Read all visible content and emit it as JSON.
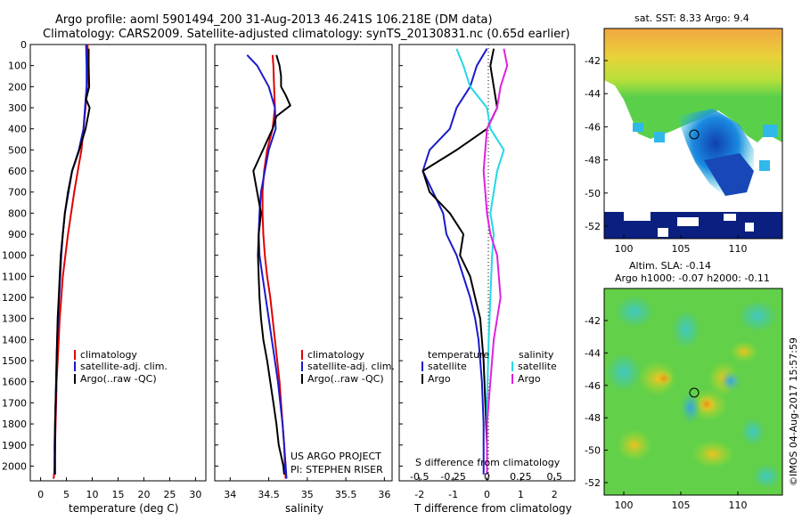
{
  "header": {
    "line1": "Argo profile: aoml 5901494_200 31-Aug-2013 46.241S 106.218E (DM data)",
    "line2": "Climatology: CARS2009. Satellite-adjusted climatology: synTS_20130831.nc (0.65d earlier)"
  },
  "colors": {
    "climatology": "#e00000",
    "satellite": "#1a1acc",
    "argo": "#000000",
    "sal_satellite": "#22d8e8",
    "sal_argo": "#e020e0"
  },
  "chart_data": [
    {
      "type": "line",
      "id": "temperature",
      "xlabel": "temperature (deg C)",
      "ylabel": "",
      "xlim": [
        -2,
        32
      ],
      "ylim": [
        2070,
        0
      ],
      "xticks": [
        0,
        5,
        10,
        15,
        20,
        25,
        30
      ],
      "yticks": [
        0,
        100,
        200,
        300,
        400,
        500,
        600,
        700,
        800,
        900,
        1000,
        1100,
        1200,
        1300,
        1400,
        1500,
        1600,
        1700,
        1800,
        1900,
        2000
      ],
      "legend": [
        "climatology",
        "satellite-adj. clim.",
        "Argo(..raw -QC)"
      ],
      "series": [
        {
          "name": "climatology",
          "color": "#e00000",
          "x": [
            9.1,
            9.2,
            9.0,
            8.7,
            8.3,
            7.9,
            7.2,
            6.5,
            5.9,
            5.3,
            4.8,
            4.3,
            4.0,
            3.7,
            3.5,
            3.3,
            3.1,
            3.0,
            2.9,
            2.8,
            2.7,
            2.6,
            2.5
          ],
          "y": [
            0,
            100,
            200,
            300,
            400,
            500,
            600,
            700,
            800,
            900,
            1000,
            1100,
            1200,
            1300,
            1400,
            1500,
            1600,
            1700,
            1800,
            1900,
            2000,
            2040,
            2060
          ]
        },
        {
          "name": "satellite-adj. clim.",
          "color": "#1a1acc",
          "x": [
            8.8,
            8.9,
            8.9,
            8.6,
            8.3,
            7.4,
            6.1,
            5.4,
            4.7,
            4.3,
            4.0,
            3.8,
            3.6,
            3.4,
            3.2,
            3.1,
            3.0,
            2.9,
            2.8,
            2.7,
            2.7
          ],
          "y": [
            0,
            100,
            200,
            300,
            400,
            500,
            600,
            700,
            800,
            900,
            1000,
            1100,
            1200,
            1300,
            1400,
            1500,
            1600,
            1700,
            1800,
            1900,
            2040
          ]
        },
        {
          "name": "Argo(..raw -QC)",
          "color": "#000000",
          "x": [
            9.3,
            9.3,
            9.4,
            8.8,
            9.5,
            8.7,
            7.5,
            6.1,
            5.3,
            4.7,
            4.3,
            3.9,
            3.7,
            3.5,
            3.3,
            3.2,
            3.1,
            3.0,
            2.9,
            2.8,
            2.8
          ],
          "y": [
            20,
            100,
            200,
            260,
            300,
            400,
            500,
            600,
            700,
            800,
            900,
            1000,
            1100,
            1200,
            1300,
            1400,
            1500,
            1600,
            1700,
            1800,
            2040
          ]
        }
      ]
    },
    {
      "type": "line",
      "id": "salinity",
      "xlabel": "salinity",
      "xlim": [
        33.8,
        36.1
      ],
      "ylim": [
        2070,
        0
      ],
      "xticks": [
        34,
        34.5,
        35,
        35.5,
        36
      ],
      "legend": [
        "climatology",
        "satellite-adj. clim.",
        "Argo(..raw -QC)"
      ],
      "annotation": [
        "US ARGO PROJECT",
        "PI: STEPHEN RISER"
      ],
      "series": [
        {
          "name": "climatology",
          "color": "#e00000",
          "x": [
            34.55,
            34.56,
            34.57,
            34.58,
            34.55,
            34.48,
            34.44,
            34.42,
            34.42,
            34.43,
            34.45,
            34.48,
            34.52,
            34.55,
            34.58,
            34.61,
            34.64,
            34.66,
            34.68,
            34.7,
            34.71,
            34.72
          ],
          "y": [
            50,
            100,
            200,
            300,
            400,
            500,
            600,
            700,
            800,
            900,
            1000,
            1100,
            1200,
            1300,
            1400,
            1500,
            1600,
            1700,
            1800,
            1900,
            2000,
            2060
          ]
        },
        {
          "name": "satellite-adj. clim.",
          "color": "#1a1acc",
          "x": [
            34.22,
            34.35,
            34.5,
            34.58,
            34.59,
            34.5,
            34.45,
            34.4,
            34.38,
            34.37,
            34.38,
            34.42,
            34.46,
            34.5,
            34.54,
            34.58,
            34.62,
            34.65,
            34.68,
            34.7,
            34.72,
            34.73
          ],
          "y": [
            50,
            100,
            200,
            300,
            400,
            500,
            600,
            700,
            800,
            900,
            1000,
            1100,
            1200,
            1300,
            1400,
            1500,
            1600,
            1700,
            1800,
            1900,
            2000,
            2060
          ]
        },
        {
          "name": "Argo(..raw -QC)",
          "color": "#000000",
          "x": [
            34.6,
            34.64,
            34.66,
            34.66,
            34.72,
            34.78,
            34.6,
            34.55,
            34.3,
            34.35,
            34.4,
            34.37,
            34.36,
            34.37,
            34.38,
            34.4,
            34.43,
            34.48,
            34.52,
            34.56,
            34.6,
            34.63,
            34.66,
            34.69,
            34.7
          ],
          "y": [
            50,
            100,
            150,
            200,
            240,
            290,
            340,
            400,
            600,
            700,
            800,
            900,
            1000,
            1100,
            1200,
            1300,
            1400,
            1500,
            1600,
            1700,
            1800,
            1900,
            1950,
            2000,
            2040
          ]
        }
      ]
    },
    {
      "type": "line",
      "id": "difference",
      "xlabel": "T difference from climatology",
      "top_label": "S difference from climatology",
      "xlim": [
        -2.6,
        2.6
      ],
      "ylim": [
        2070,
        0
      ],
      "xticks": [
        -2,
        -1,
        0,
        1,
        2
      ],
      "xtick_labels": [
        "-2",
        "-1",
        "0",
        "1",
        "2"
      ],
      "sticks": [
        "-0.5",
        "-0.25",
        "0",
        "0.25",
        "0.5"
      ],
      "legend_temperature": [
        "temperature",
        "satellite",
        "Argo"
      ],
      "legend_salinity": [
        "salinity",
        "satellite",
        "Argo"
      ],
      "series": [
        {
          "name": "temperature satellite",
          "color": "#1a1acc",
          "x": [
            0.0,
            -0.3,
            -0.5,
            -0.9,
            -1.1,
            -1.7,
            -1.9,
            -1.6,
            -1.3,
            -1.2,
            -0.9,
            -0.7,
            -0.5,
            -0.35,
            -0.25,
            -0.2,
            -0.15,
            -0.1,
            -0.1
          ],
          "y": [
            20,
            100,
            200,
            300,
            400,
            500,
            600,
            700,
            800,
            900,
            1000,
            1100,
            1200,
            1300,
            1400,
            1500,
            1600,
            1800,
            2040
          ]
        },
        {
          "name": "temperature Argo",
          "color": "#000000",
          "x": [
            0.2,
            0.1,
            0.2,
            0.3,
            0.0,
            -0.9,
            -1.9,
            -1.7,
            -1.1,
            -0.7,
            -0.8,
            -0.5,
            -0.35,
            -0.2,
            -0.1,
            -0.05,
            0.0,
            0.0
          ],
          "y": [
            20,
            100,
            200,
            300,
            400,
            500,
            600,
            700,
            800,
            900,
            1000,
            1100,
            1200,
            1300,
            1500,
            1700,
            1900,
            2040
          ]
        },
        {
          "name": "salinity satellite",
          "color": "#22d8e8",
          "x": [
            -0.9,
            -0.7,
            -0.5,
            0.0,
            0.1,
            0.5,
            0.3,
            0.2,
            0.1,
            0.2,
            0.15,
            0.1,
            0.05,
            0.0,
            0.0
          ],
          "y": [
            20,
            100,
            200,
            300,
            400,
            500,
            600,
            700,
            800,
            900,
            1000,
            1200,
            1400,
            1700,
            2040
          ]
        },
        {
          "name": "salinity Argo",
          "color": "#e020e0",
          "x": [
            0.5,
            0.6,
            0.4,
            0.3,
            0.0,
            -0.1,
            0.0,
            0.1,
            0.3,
            0.4,
            0.2,
            0.1,
            0.0,
            0.0
          ],
          "y": [
            20,
            100,
            200,
            300,
            400,
            600,
            800,
            900,
            1000,
            1200,
            1400,
            1600,
            1800,
            2040
          ]
        }
      ]
    }
  ],
  "maps": {
    "sst": {
      "title": "sat. SST: 8.33  Argo: 9.4",
      "yticks": [
        "-42",
        "-44",
        "-46",
        "-48",
        "-50",
        "-52"
      ],
      "xticks": [
        "100",
        "105",
        "110"
      ]
    },
    "sla": {
      "title1": "Altim. SLA: -0.14",
      "title2": "Argo h1000: -0.07 h2000: -0.11",
      "yticks": [
        "-42",
        "-44",
        "-46",
        "-48",
        "-50",
        "-52"
      ],
      "xticks": [
        "100",
        "105",
        "110"
      ]
    }
  },
  "footer": {
    "stamp": "©IMOS 04-Aug-2017 15:57:59"
  }
}
